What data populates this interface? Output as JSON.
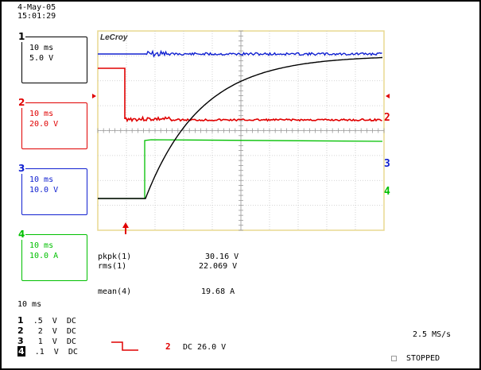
{
  "header": {
    "date": "4-May-05",
    "time": "15:01:29"
  },
  "brand": "LeCroy",
  "channels": [
    {
      "num": "1",
      "timebase": "10 ms",
      "scale": "5.0 V",
      "color": "#000000"
    },
    {
      "num": "2",
      "timebase": "10 ms",
      "scale": "20.0 V",
      "color": "#e00000"
    },
    {
      "num": "3",
      "timebase": "10 ms",
      "scale": "10.0 V",
      "color": "#1020d0"
    },
    {
      "num": "4",
      "timebase": "10 ms",
      "scale": "10.0 A",
      "color": "#00c000"
    }
  ],
  "measurements": [
    {
      "label": "pkpk(1)",
      "value": "30.16 V"
    },
    {
      "label": "rms(1)",
      "value": "22.069 V"
    },
    {
      "label": "mean(4)",
      "value": "19.68 A"
    }
  ],
  "timebase_readout": "10 ms",
  "legend": [
    {
      "num": "1",
      "scale": ".5",
      "unit": "V",
      "coupling": "DC"
    },
    {
      "num": "2",
      "scale": "2",
      "unit": "V",
      "coupling": "DC"
    },
    {
      "num": "3",
      "scale": "1",
      "unit": "V",
      "coupling": "DC"
    },
    {
      "num": "4",
      "scale": ".1",
      "unit": "V",
      "coupling": "DC"
    }
  ],
  "trigger": {
    "channel": "2",
    "text": "DC 26.0 V"
  },
  "sample_rate": "2.5 MS/s",
  "status": "STOPPED"
}
